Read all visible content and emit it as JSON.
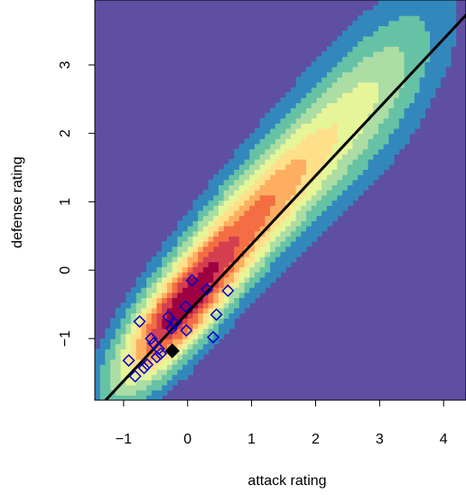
{
  "chart_data": {
    "type": "heatmap",
    "title": "",
    "xlabel": "attack rating",
    "ylabel": "defense rating",
    "xlim": [
      -1.45,
      4.35
    ],
    "ylim": [
      -1.9,
      3.95
    ],
    "x_ticks": [
      -1,
      0,
      1,
      2,
      3,
      4
    ],
    "x_tick_labels": [
      "−1",
      "0",
      "1",
      "2",
      "3",
      "4"
    ],
    "y_ticks": [
      -1,
      0,
      1,
      2,
      3
    ],
    "y_tick_labels": [
      "−1",
      "0",
      "1",
      "2",
      "3"
    ],
    "grid": false,
    "legend": "none",
    "density": {
      "colormap": "spectral",
      "background_color": "#5e4fa2",
      "colors": [
        "#5e4fa2",
        "#3288bd",
        "#66c2a5",
        "#abdda4",
        "#e6f598",
        "#fee08b",
        "#fdae61",
        "#f46d43",
        "#d53e4f",
        "#9e0142"
      ],
      "components": [
        {
          "weight": 1.0,
          "mean": [
            -0.1,
            -0.55
          ],
          "sd": [
            0.55,
            0.62
          ],
          "rho": 0.8
        },
        {
          "weight": 0.55,
          "mean": [
            1.0,
            0.75
          ],
          "sd": [
            0.7,
            0.75
          ],
          "rho": 0.82
        },
        {
          "weight": 0.22,
          "mean": [
            2.3,
            2.0
          ],
          "sd": [
            0.75,
            0.8
          ],
          "rho": 0.72
        },
        {
          "weight": 0.07,
          "mean": [
            3.1,
            3.0
          ],
          "sd": [
            0.55,
            0.65
          ],
          "rho": 0.6
        }
      ]
    },
    "reference_line": {
      "intercept": -0.62,
      "slope": 1.0,
      "color": "#000000"
    },
    "open_points": {
      "marker": "diamond-open",
      "color": "#0000cc",
      "x": [
        -0.92,
        -0.82,
        -0.75,
        -0.68,
        -0.63,
        -0.57,
        -0.53,
        -0.48,
        -0.45,
        -0.42,
        -0.3,
        -0.25,
        -0.2,
        -0.02,
        -0.03,
        0.07,
        0.3,
        0.4,
        0.45,
        0.63
      ],
      "y": [
        -1.32,
        -1.55,
        -0.75,
        -1.43,
        -1.38,
        -1.0,
        -1.07,
        -1.27,
        -1.15,
        -1.22,
        -0.68,
        -0.85,
        -0.78,
        -0.88,
        -0.53,
        -0.15,
        -0.28,
        -0.98,
        -0.65,
        -0.3
      ]
    },
    "filled_point": {
      "marker": "diamond-filled",
      "color": "#000000",
      "x": -0.24,
      "y": -1.18
    }
  }
}
